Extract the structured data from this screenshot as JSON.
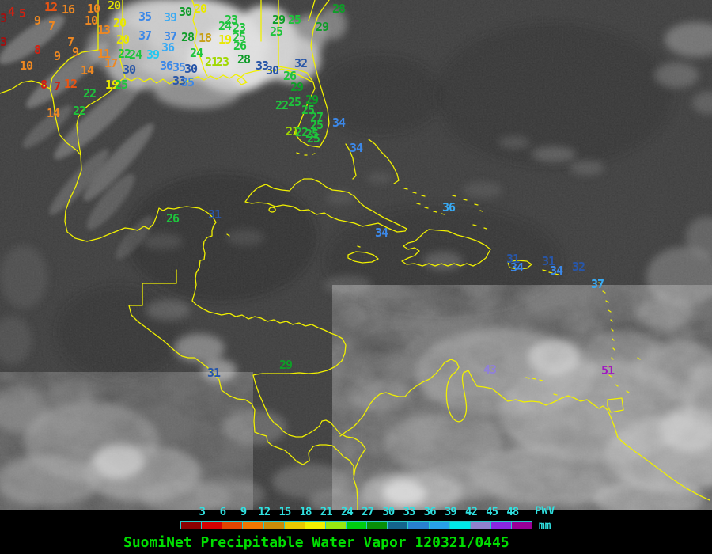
{
  "map": {
    "palette": {
      "darkred": "#a01010",
      "red": "#d42010",
      "orangered": "#e85414",
      "orange": "#ee8822",
      "gold": "#c8a018",
      "yellow": "#e8e800",
      "lime": "#a0d800",
      "green": "#1ec43c",
      "dkgreen": "#0f9c28",
      "navy": "#2856a8",
      "medblue": "#3c88e8",
      "ltblue": "#38aaf4",
      "cyan": "#20c8f0",
      "violet": "#9080d8",
      "purple": "#a018c0"
    },
    "coastline_color": "#f0f000",
    "stations": [
      [
        "4",
        10,
        8,
        "red"
      ],
      [
        "5",
        24,
        10,
        "red"
      ],
      [
        "3",
        0,
        16,
        "darkred"
      ],
      [
        "9",
        43,
        19,
        "orange"
      ],
      [
        "12",
        56,
        2,
        "orangered"
      ],
      [
        "16",
        78,
        5,
        "orange"
      ],
      [
        "10",
        110,
        4,
        "orange"
      ],
      [
        "20",
        136,
        0,
        "yellow"
      ],
      [
        "7",
        61,
        26,
        "orange"
      ],
      [
        "10",
        107,
        19,
        "orange"
      ],
      [
        "13",
        123,
        31,
        "orange"
      ],
      [
        "20",
        143,
        22,
        "yellow"
      ],
      [
        "20",
        147,
        43,
        "yellow"
      ],
      [
        "3",
        0,
        46,
        "darkred"
      ],
      [
        "7",
        85,
        46,
        "orange"
      ],
      [
        "8",
        43,
        56,
        "red"
      ],
      [
        "9",
        68,
        64,
        "orange"
      ],
      [
        "9",
        91,
        59,
        "orange"
      ],
      [
        "11",
        123,
        61,
        "orange"
      ],
      [
        "17",
        132,
        73,
        "orange"
      ],
      [
        "14",
        102,
        82,
        "orange"
      ],
      [
        "10",
        25,
        76,
        "orange"
      ],
      [
        "8",
        51,
        100,
        "red"
      ],
      [
        "7",
        68,
        102,
        "red"
      ],
      [
        "12",
        81,
        99,
        "orangered"
      ],
      [
        "19",
        133,
        100,
        "yellow"
      ],
      [
        "25",
        145,
        100,
        "green"
      ],
      [
        "22",
        105,
        111,
        "green"
      ],
      [
        "14",
        59,
        136,
        "orange"
      ],
      [
        "22",
        92,
        133,
        "green"
      ],
      [
        "35",
        175,
        14,
        "medblue"
      ],
      [
        "39",
        207,
        15,
        "ltblue"
      ],
      [
        "30",
        226,
        8,
        "dkgreen"
      ],
      [
        "20",
        245,
        4,
        "yellow"
      ],
      [
        "37",
        175,
        38,
        "medblue"
      ],
      [
        "37",
        207,
        39,
        "medblue"
      ],
      [
        "36",
        204,
        53,
        "ltblue"
      ],
      [
        "22",
        149,
        61,
        "green"
      ],
      [
        "24",
        163,
        62,
        "green"
      ],
      [
        "39",
        185,
        62,
        "cyan"
      ],
      [
        "36",
        202,
        76,
        "medblue"
      ],
      [
        "24",
        240,
        60,
        "green"
      ],
      [
        "30",
        155,
        81,
        "navy"
      ],
      [
        "35",
        218,
        78,
        "medblue"
      ],
      [
        "30",
        233,
        80,
        "navy"
      ],
      [
        "21",
        259,
        71,
        "lime"
      ],
      [
        "23",
        273,
        71,
        "lime"
      ],
      [
        "33",
        218,
        95,
        "navy"
      ],
      [
        "35",
        229,
        97,
        "medblue"
      ],
      [
        "28",
        229,
        40,
        "dkgreen"
      ],
      [
        "18",
        251,
        41,
        "gold"
      ],
      [
        "19",
        276,
        43,
        "yellow"
      ],
      [
        "25",
        294,
        40,
        "green"
      ],
      [
        "26",
        295,
        51,
        "green"
      ],
      [
        "23",
        284,
        18,
        "green"
      ],
      [
        "24",
        276,
        26,
        "green"
      ],
      [
        "23",
        294,
        28,
        "green"
      ],
      [
        "28",
        300,
        68,
        "dkgreen"
      ],
      [
        "29",
        344,
        18,
        "dkgreen"
      ],
      [
        "25",
        364,
        18,
        "green"
      ],
      [
        "25",
        341,
        33,
        "green"
      ],
      [
        "29",
        399,
        27,
        "dkgreen"
      ],
      [
        "28",
        420,
        4,
        "dkgreen"
      ],
      [
        "32",
        372,
        73,
        "navy"
      ],
      [
        "33",
        323,
        76,
        "navy"
      ],
      [
        "30",
        336,
        82,
        "navy"
      ],
      [
        "26",
        358,
        89,
        "green"
      ],
      [
        "29",
        367,
        103,
        "dkgreen"
      ],
      [
        "25",
        364,
        122,
        "green"
      ],
      [
        "29",
        386,
        119,
        "dkgreen"
      ],
      [
        "22",
        348,
        126,
        "green"
      ],
      [
        "25",
        381,
        132,
        "green"
      ],
      [
        "27",
        392,
        141,
        "green"
      ],
      [
        "25",
        392,
        151,
        "green"
      ],
      [
        "21",
        361,
        159,
        "lime"
      ],
      [
        "22",
        373,
        160,
        "green"
      ],
      [
        "25",
        386,
        162,
        "green"
      ],
      [
        "25",
        388,
        168,
        "green"
      ],
      [
        "34",
        420,
        148,
        "medblue"
      ],
      [
        "34",
        442,
        180,
        "medblue"
      ],
      [
        "26",
        210,
        269,
        "green"
      ],
      [
        "31",
        263,
        264,
        "navy"
      ],
      [
        "36",
        559,
        255,
        "ltblue"
      ],
      [
        "34",
        474,
        287,
        "medblue"
      ],
      [
        "31",
        640,
        320,
        "navy"
      ],
      [
        "34",
        645,
        331,
        "medblue"
      ],
      [
        "31",
        685,
        323,
        "navy"
      ],
      [
        "34",
        695,
        335,
        "medblue"
      ],
      [
        "32",
        723,
        330,
        "navy"
      ],
      [
        "37",
        747,
        352,
        "ltblue"
      ],
      [
        "43",
        611,
        460,
        "violet"
      ],
      [
        "51",
        760,
        461,
        "purple"
      ],
      [
        "29",
        353,
        454,
        "dkgreen"
      ],
      [
        "31",
        262,
        464,
        "navy"
      ]
    ]
  },
  "colorbar": {
    "tick_labels": [
      "3",
      "6",
      "9",
      "12",
      "15",
      "18",
      "21",
      "24",
      "27",
      "30",
      "33",
      "36",
      "39",
      "42",
      "45",
      "48"
    ],
    "tick_color": "#30e0e0",
    "segment_colors": [
      "#8c0000",
      "#d40000",
      "#e04400",
      "#ee7700",
      "#c88c08",
      "#e8c800",
      "#f0f000",
      "#98e810",
      "#00cc10",
      "#089008",
      "#14648c",
      "#2880d0",
      "#28a0e8",
      "#00e8e8",
      "#9080cc",
      "#8828e0",
      "#980098"
    ],
    "unit_line1": "PWV",
    "unit_line2": "mm"
  },
  "footer": {
    "title": "SuomiNet Precipitable Water Vapor 120321/0445",
    "title_color": "#00dd00"
  }
}
